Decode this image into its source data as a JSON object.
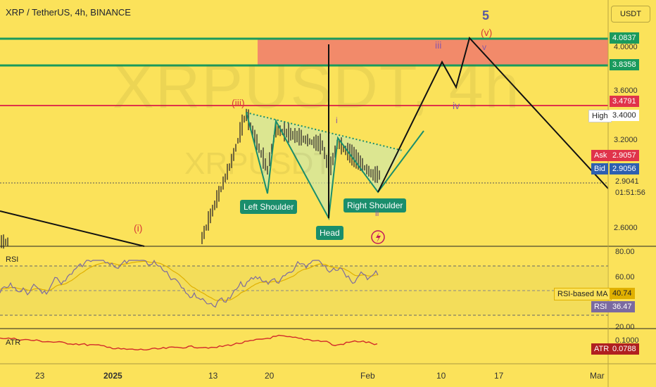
{
  "header": {
    "symbol_title": "XRP / TetherUS, 4h, BINANCE",
    "currency_button": "USDT",
    "watermark": "XRPUSDT, 4h",
    "watermark_small": "XRPUSDT"
  },
  "price_axis": {
    "ticks": [
      "4.0000",
      "3.6000",
      "3.2000",
      "2.6000"
    ],
    "tag_4_0837": "4.0837",
    "tag_3_8358": "3.8358",
    "tag_3_4791": "3.4791",
    "high_label": "High",
    "high_value": "3.4000",
    "ask_label": "Ask",
    "ask_value": "2.9057",
    "bid_label": "Bid",
    "bid_value": "2.9056",
    "last_price": "2.9041",
    "countdown": "01:51:56"
  },
  "annotations": {
    "left_shoulder": "Left Shoulder",
    "head": "Head",
    "right_shoulder": "Right Shoulder",
    "wave_5": "5",
    "wave_v_paren": "(v)",
    "wave_iii_paren": "(iii)",
    "wave_i_paren": "(i)",
    "wave_iii": "iii",
    "wave_iv": "iv",
    "wave_v": "v",
    "wave_i": "i",
    "wave_ii": "ii"
  },
  "rsi_pane": {
    "label": "RSI",
    "ticks": [
      "80.00",
      "60.00",
      "20.00"
    ],
    "ma_label": "RSI-based MA",
    "ma_value": "40.74",
    "rsi_label": "RSI",
    "rsi_value": "36.47"
  },
  "atr_pane": {
    "label": "ATR",
    "tick": "0.1000",
    "atr_label": "ATR",
    "atr_value": "0.0788"
  },
  "time_axis": {
    "labels": [
      "23",
      "2025",
      "13",
      "20",
      "Feb",
      "10",
      "17",
      "Mar"
    ]
  },
  "colors": {
    "background": "#fbe25a",
    "green_line": "#1a9a5c",
    "red_line": "#e0334a",
    "supply_zone": "#f28a6a",
    "candles": "#3a3530",
    "wedge_fill": "#cfe8a8",
    "teal": "#1a8e6c",
    "rsi_line": "#7b6aa0",
    "atr_line": "#d22a2a",
    "wave_purple": "#8a58a8",
    "wave_red": "#d83a3a"
  }
}
